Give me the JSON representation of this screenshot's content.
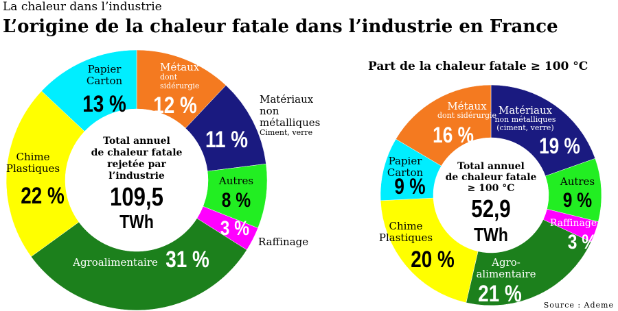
{
  "header": {
    "supertitle": "La chaleur dans l’industrie",
    "title": "L’origine de la chaleur fatale dans l’industrie en France"
  },
  "source": "Source : Ademe",
  "chart_data": [
    {
      "type": "pie",
      "variant": "donut",
      "center_text": [
        "Total annuel",
        "de chaleur fatale",
        "rejetée par",
        "l’industrie"
      ],
      "center_value": "109,5",
      "center_unit": "TWh",
      "total_value": 109.5,
      "unit": "TWh",
      "slices": [
        {
          "label": [
            "Métaux"
          ],
          "sublabel": [
            "dont",
            "sidérurgie"
          ],
          "value": 12,
          "value_label": "12 %",
          "color": "#f47a20"
        },
        {
          "label": [
            "Matériaux",
            "non",
            "métalliques"
          ],
          "sublabel": [
            "Ciment, verre"
          ],
          "value": 11,
          "value_label": "11 %",
          "color": "#1a1a80"
        },
        {
          "label": [
            "Autres"
          ],
          "sublabel": [],
          "value": 8,
          "value_label": "8 %",
          "color": "#22ee22"
        },
        {
          "label": [
            "Raffinage"
          ],
          "sublabel": [],
          "value": 3,
          "value_label": "3 %",
          "color": "#ff00ff"
        },
        {
          "label": [
            "Agroalimentaire"
          ],
          "sublabel": [],
          "value": 31,
          "value_label": "31 %",
          "color": "#1c801c"
        },
        {
          "label": [
            "Chime",
            "Plastiques"
          ],
          "sublabel": [],
          "value": 22,
          "value_label": "22 %",
          "color": "#ffff00"
        },
        {
          "label": [
            "Papier",
            "Carton"
          ],
          "sublabel": [],
          "value": 13,
          "value_label": "13 %",
          "color": "#00eeff"
        }
      ]
    },
    {
      "type": "pie",
      "variant": "donut",
      "title": "Part de la chaleur fatale ≥ 100 °C",
      "center_text": [
        "Total annuel",
        "de chaleur fatale",
        "≥ 100 °C"
      ],
      "center_value": "52,9",
      "center_unit": "TWh",
      "total_value": 52.9,
      "unit": "TWh",
      "slices": [
        {
          "label": [
            "Matériaux"
          ],
          "sublabel": [
            "non métalliques",
            "(ciment, verre)"
          ],
          "value": 19,
          "value_label": "19 %",
          "color": "#1a1a80"
        },
        {
          "label": [
            "Autres"
          ],
          "sublabel": [],
          "value": 9,
          "value_label": "9 %",
          "color": "#22ee22"
        },
        {
          "label": [
            "Raffinage"
          ],
          "sublabel": [],
          "value": 3,
          "value_label": "3 %",
          "color": "#ff00ff"
        },
        {
          "label": [
            "Agro-",
            "alimentaire"
          ],
          "sublabel": [],
          "value": 21,
          "value_label": "21 %",
          "color": "#1c801c"
        },
        {
          "label": [
            "Chime",
            "Plastiques"
          ],
          "sublabel": [],
          "value": 20,
          "value_label": "20 %",
          "color": "#ffff00"
        },
        {
          "label": [
            "Papier",
            "Carton"
          ],
          "sublabel": [],
          "value": 9,
          "value_label": "9 %",
          "color": "#00eeff"
        },
        {
          "label": [
            "Métaux"
          ],
          "sublabel": [
            "dont sidérurgie"
          ],
          "value": 16,
          "value_label": "16 %",
          "color": "#f47a20"
        }
      ]
    }
  ]
}
